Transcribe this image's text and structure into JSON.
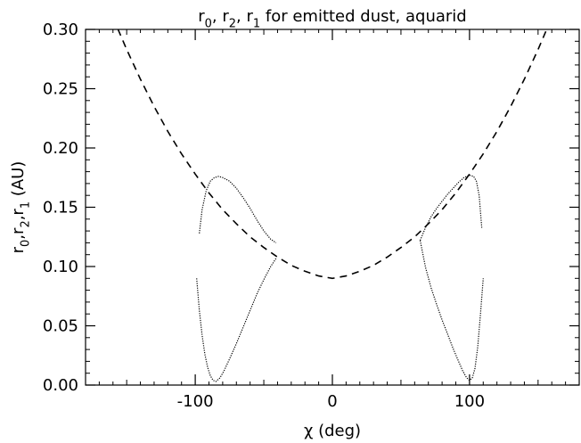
{
  "chart_data": {
    "type": "line",
    "title_parts": [
      {
        "base": "r",
        "sub": "0",
        "after": ", "
      },
      {
        "base": "r",
        "sub": "2",
        "after": ", "
      },
      {
        "base": "r",
        "sub": "1",
        "after": " for emitted dust, aquarid"
      }
    ],
    "xlabel": "χ (deg)",
    "ylabel_parts": [
      {
        "base": "r",
        "sub": "0",
        "after": ","
      },
      {
        "base": "r",
        "sub": "2",
        "after": ","
      },
      {
        "base": "r",
        "sub": "1",
        "after": " (AU)"
      }
    ],
    "xlim": [
      -180,
      180
    ],
    "ylim": [
      0.0,
      0.3
    ],
    "x_ticks": [
      -100,
      0,
      100
    ],
    "x_tick_labels": [
      "-100",
      "0",
      "100"
    ],
    "y_ticks": [
      0.0,
      0.05,
      0.1,
      0.15,
      0.2,
      0.25,
      0.3
    ],
    "y_tick_labels": [
      "0.00",
      "0.05",
      "0.10",
      "0.15",
      "0.20",
      "0.25",
      "0.30"
    ],
    "grid": false,
    "series": [
      {
        "style": "dashed",
        "x": [
          -160,
          -150,
          -140,
          -130,
          -120,
          -110,
          -100,
          -90,
          -80,
          -70,
          -60,
          -50,
          -40,
          -30,
          -20,
          -10,
          0,
          10,
          20,
          30,
          40,
          50,
          60,
          70,
          80,
          90,
          100,
          110,
          120,
          130,
          140,
          150,
          160
        ],
        "y": [
          0.31,
          0.283,
          0.258,
          0.235,
          0.214,
          0.195,
          0.178,
          0.162,
          0.148,
          0.136,
          0.125,
          0.116,
          0.108,
          0.101,
          0.096,
          0.092,
          0.09,
          0.092,
          0.096,
          0.101,
          0.108,
          0.116,
          0.125,
          0.136,
          0.148,
          0.162,
          0.178,
          0.195,
          0.214,
          0.235,
          0.258,
          0.283,
          0.31
        ]
      },
      {
        "style": "dotted",
        "x": [
          -97,
          -95,
          -92,
          -89,
          -86,
          -83,
          -80,
          -75,
          -70,
          -65,
          -60,
          -55,
          -50,
          -45,
          -41
        ],
        "y": [
          0.128,
          0.148,
          0.164,
          0.172,
          0.175,
          0.176,
          0.175,
          0.172,
          0.166,
          0.158,
          0.149,
          0.139,
          0.13,
          0.123,
          0.12
        ]
      },
      {
        "style": "dotted",
        "x": [
          -99,
          -97,
          -95,
          -93,
          -91,
          -89,
          -87,
          -85,
          -82,
          -79,
          -75,
          -70,
          -65,
          -60,
          -55,
          -50,
          -45,
          -41
        ],
        "y": [
          0.09,
          0.063,
          0.042,
          0.026,
          0.015,
          0.008,
          0.004,
          0.003,
          0.006,
          0.012,
          0.022,
          0.035,
          0.049,
          0.063,
          0.077,
          0.089,
          0.1,
          0.107
        ]
      },
      {
        "style": "dotted",
        "x": [
          64,
          68,
          72,
          76,
          80,
          84,
          88,
          92,
          96,
          100,
          103,
          105,
          107,
          109
        ],
        "y": [
          0.122,
          0.133,
          0.142,
          0.149,
          0.155,
          0.161,
          0.166,
          0.171,
          0.175,
          0.177,
          0.176,
          0.172,
          0.16,
          0.132
        ]
      },
      {
        "style": "dotted",
        "x": [
          64,
          68,
          72,
          76,
          80,
          84,
          88,
          92,
          95,
          98,
          100,
          102,
          104,
          106,
          108,
          110
        ],
        "y": [
          0.122,
          0.099,
          0.082,
          0.068,
          0.055,
          0.043,
          0.031,
          0.02,
          0.012,
          0.006,
          0.004,
          0.006,
          0.014,
          0.032,
          0.06,
          0.09
        ]
      }
    ]
  }
}
